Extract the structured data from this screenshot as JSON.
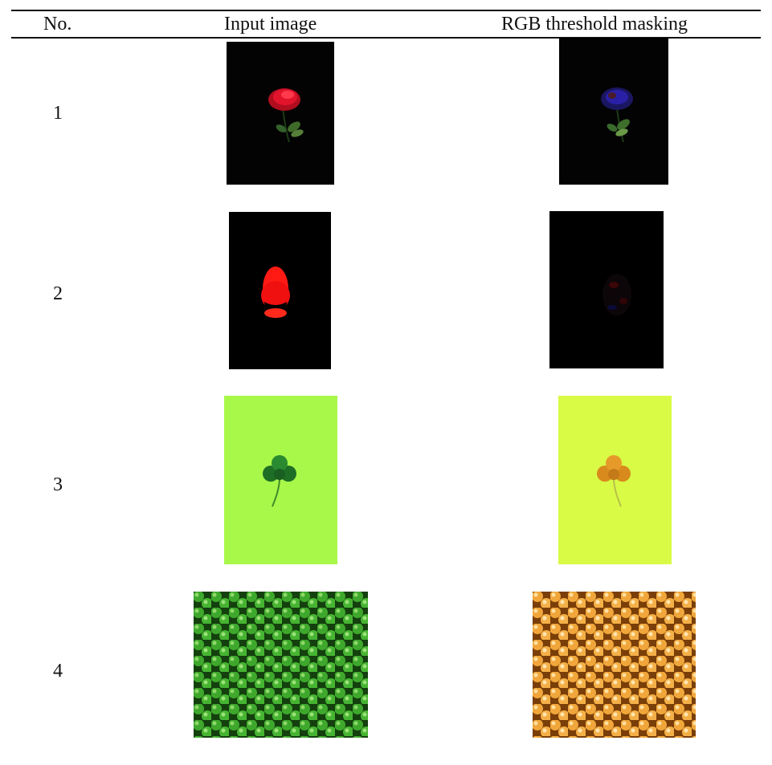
{
  "table": {
    "headers": {
      "no": "No.",
      "input": "Input image",
      "masked": "RGB threshold masking"
    },
    "rows": [
      {
        "no": "1",
        "input_image": "red-rose-on-black",
        "masked_image": "rose-blue-tinted-mask"
      },
      {
        "no": "2",
        "input_image": "red-oval-on-black",
        "masked_image": "oval-dark-mask"
      },
      {
        "no": "3",
        "input_image": "clover-on-lime",
        "masked_image": "clover-orange-on-yellow"
      },
      {
        "no": "4",
        "input_image": "green-peas",
        "masked_image": "orange-peas"
      }
    ]
  },
  "colors": {
    "rule": "#111111",
    "lime_bg": "#a8f84a",
    "yellow_bg": "#d9fb46",
    "clover_green": "#1f7a2a",
    "clover_orange": "#d98a1c",
    "rose_red": "#e2102a",
    "pea_green": "#3ea82c",
    "pea_orange": "#f0a63a"
  }
}
